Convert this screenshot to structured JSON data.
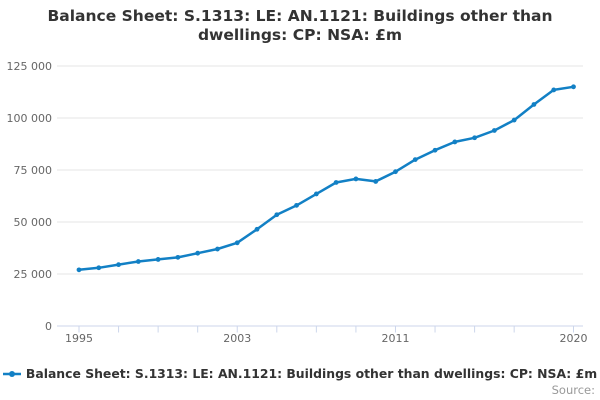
{
  "header": {
    "title_line1": "Balance Sheet: S.1313: LE: AN.1121: Buildings other than",
    "title_line2": "dwellings: CP: NSA: £m"
  },
  "legend": {
    "label": "Balance Sheet: S.1313: LE: AN.1121: Buildings other than dwellings: CP: NSA: £m"
  },
  "source_label": "Source:",
  "colors": {
    "line": "#1280c5",
    "grid": "#e6e6e6",
    "axis": "#ccd6eb",
    "axis_label": "#666666",
    "title": "#333333",
    "source": "#999999"
  },
  "chart_data": {
    "type": "line",
    "title": "Balance Sheet: S.1313: LE: AN.1121: Buildings other than dwellings: CP: NSA: £m",
    "xlabel": "",
    "ylabel": "",
    "x": [
      1995,
      1996,
      1997,
      1998,
      1999,
      2000,
      2001,
      2002,
      2003,
      2004,
      2005,
      2006,
      2007,
      2008,
      2009,
      2010,
      2011,
      2012,
      2013,
      2014,
      2015,
      2016,
      2017,
      2018,
      2019,
      2020
    ],
    "series": [
      {
        "name": "Balance Sheet: S.1313: LE: AN.1121: Buildings other than dwellings: CP: NSA: £m",
        "values": [
          27000,
          28000,
          29500,
          31000,
          32000,
          33000,
          35000,
          37000,
          40000,
          46500,
          53500,
          58000,
          63500,
          69000,
          70700,
          69500,
          74200,
          80000,
          84500,
          88500,
          90500,
          94000,
          99000,
          106500,
          113500,
          115000
        ]
      }
    ],
    "ylim": [
      0,
      125000
    ],
    "yticks": [
      0,
      25000,
      50000,
      75000,
      100000,
      125000
    ],
    "ytick_labels": [
      "0",
      "25 000",
      "50 000",
      "75 000",
      "100 000",
      "125 000"
    ],
    "xtick_years": [
      1995,
      1997,
      1999,
      2001,
      2003,
      2005,
      2007,
      2009,
      2011,
      2013,
      2015,
      2017,
      2020
    ],
    "xtick_label_years": [
      1995,
      2003,
      2011,
      2020
    ],
    "xtick_labels": [
      "1995",
      "2003",
      "2011",
      "2020"
    ],
    "grid": true,
    "legend_position": "bottom",
    "marker": "circle"
  }
}
